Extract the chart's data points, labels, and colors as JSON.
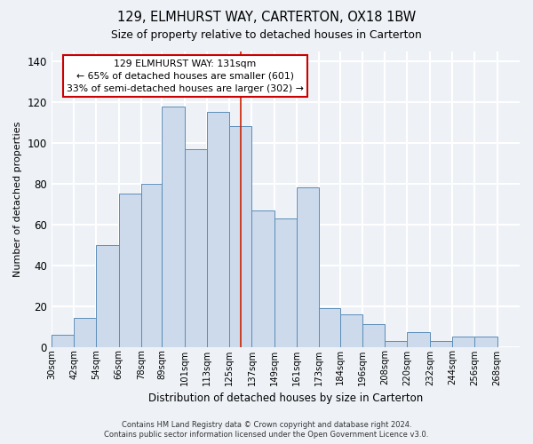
{
  "title": "129, ELMHURST WAY, CARTERTON, OX18 1BW",
  "subtitle": "Size of property relative to detached houses in Carterton",
  "xlabel": "Distribution of detached houses by size in Carterton",
  "ylabel": "Number of detached properties",
  "bar_labels": [
    "30sqm",
    "42sqm",
    "54sqm",
    "66sqm",
    "78sqm",
    "89sqm",
    "101sqm",
    "113sqm",
    "125sqm",
    "137sqm",
    "149sqm",
    "161sqm",
    "173sqm",
    "184sqm",
    "196sqm",
    "208sqm",
    "220sqm",
    "232sqm",
    "244sqm",
    "256sqm",
    "268sqm"
  ],
  "bar_values": [
    6,
    14,
    50,
    75,
    80,
    118,
    97,
    115,
    108,
    67,
    63,
    78,
    19,
    16,
    11,
    3,
    7,
    3,
    5,
    5,
    0
  ],
  "bar_color": "#ccdaeb",
  "bar_edge_color": "#5b8db8",
  "property_line_x": 131,
  "property_line_label": "129 ELMHURST WAY: 131sqm",
  "annotation_line1": "← 65% of detached houses are smaller (601)",
  "annotation_line2": "33% of semi-detached houses are larger (302) →",
  "annotation_box_color": "#ffffff",
  "annotation_box_edge": "#cc0000",
  "vline_color": "#cc2200",
  "ylim": [
    0,
    145
  ],
  "yticks": [
    0,
    20,
    40,
    60,
    80,
    100,
    120,
    140
  ],
  "footer_line1": "Contains HM Land Registry data © Crown copyright and database right 2024.",
  "footer_line2": "Contains public sector information licensed under the Open Government Licence v3.0.",
  "background_color": "#eef2f7",
  "plot_bg_color": "#eef2f7",
  "grid_color": "#ffffff"
}
